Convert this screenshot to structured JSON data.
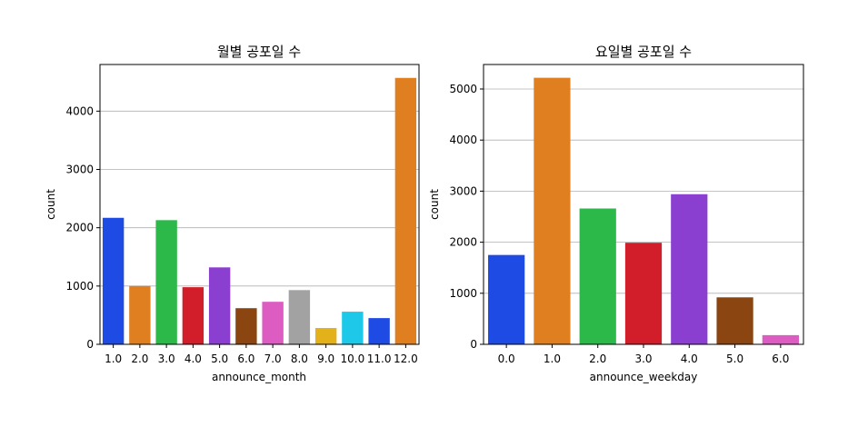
{
  "chart_data": [
    {
      "type": "bar",
      "title": "월별 공포일 수",
      "xlabel": "announce_month",
      "ylabel": "count",
      "categories": [
        "1.0",
        "2.0",
        "3.0",
        "4.0",
        "5.0",
        "6.0",
        "7.0",
        "8.0",
        "9.0",
        "10.0",
        "11.0",
        "12.0"
      ],
      "values": [
        2170,
        1000,
        2130,
        980,
        1320,
        620,
        730,
        930,
        280,
        560,
        450,
        4570
      ],
      "colors": [
        "#1f4be5",
        "#e07f1f",
        "#2db84a",
        "#d11e2a",
        "#8b3fd1",
        "#8a4511",
        "#dc5cc2",
        "#a2a2a2",
        "#e3b11a",
        "#1ec8e8",
        "#1f4be5",
        "#e07f1f"
      ],
      "yticks": [
        0,
        1000,
        2000,
        3000,
        4000
      ],
      "ylim": [
        0,
        4800
      ],
      "grid": "y"
    },
    {
      "type": "bar",
      "title": "요일별 공포일 수",
      "xlabel": "announce_weekday",
      "ylabel": "count",
      "categories": [
        "0.0",
        "1.0",
        "2.0",
        "3.0",
        "4.0",
        "5.0",
        "6.0"
      ],
      "values": [
        1750,
        5220,
        2660,
        1990,
        2940,
        920,
        180
      ],
      "colors": [
        "#1f4be5",
        "#e07f1f",
        "#2db84a",
        "#d11e2a",
        "#8b3fd1",
        "#8a4511",
        "#dc5cc2"
      ],
      "yticks": [
        0,
        1000,
        2000,
        3000,
        4000,
        5000
      ],
      "ylim": [
        0,
        5480
      ],
      "grid": "y"
    }
  ]
}
